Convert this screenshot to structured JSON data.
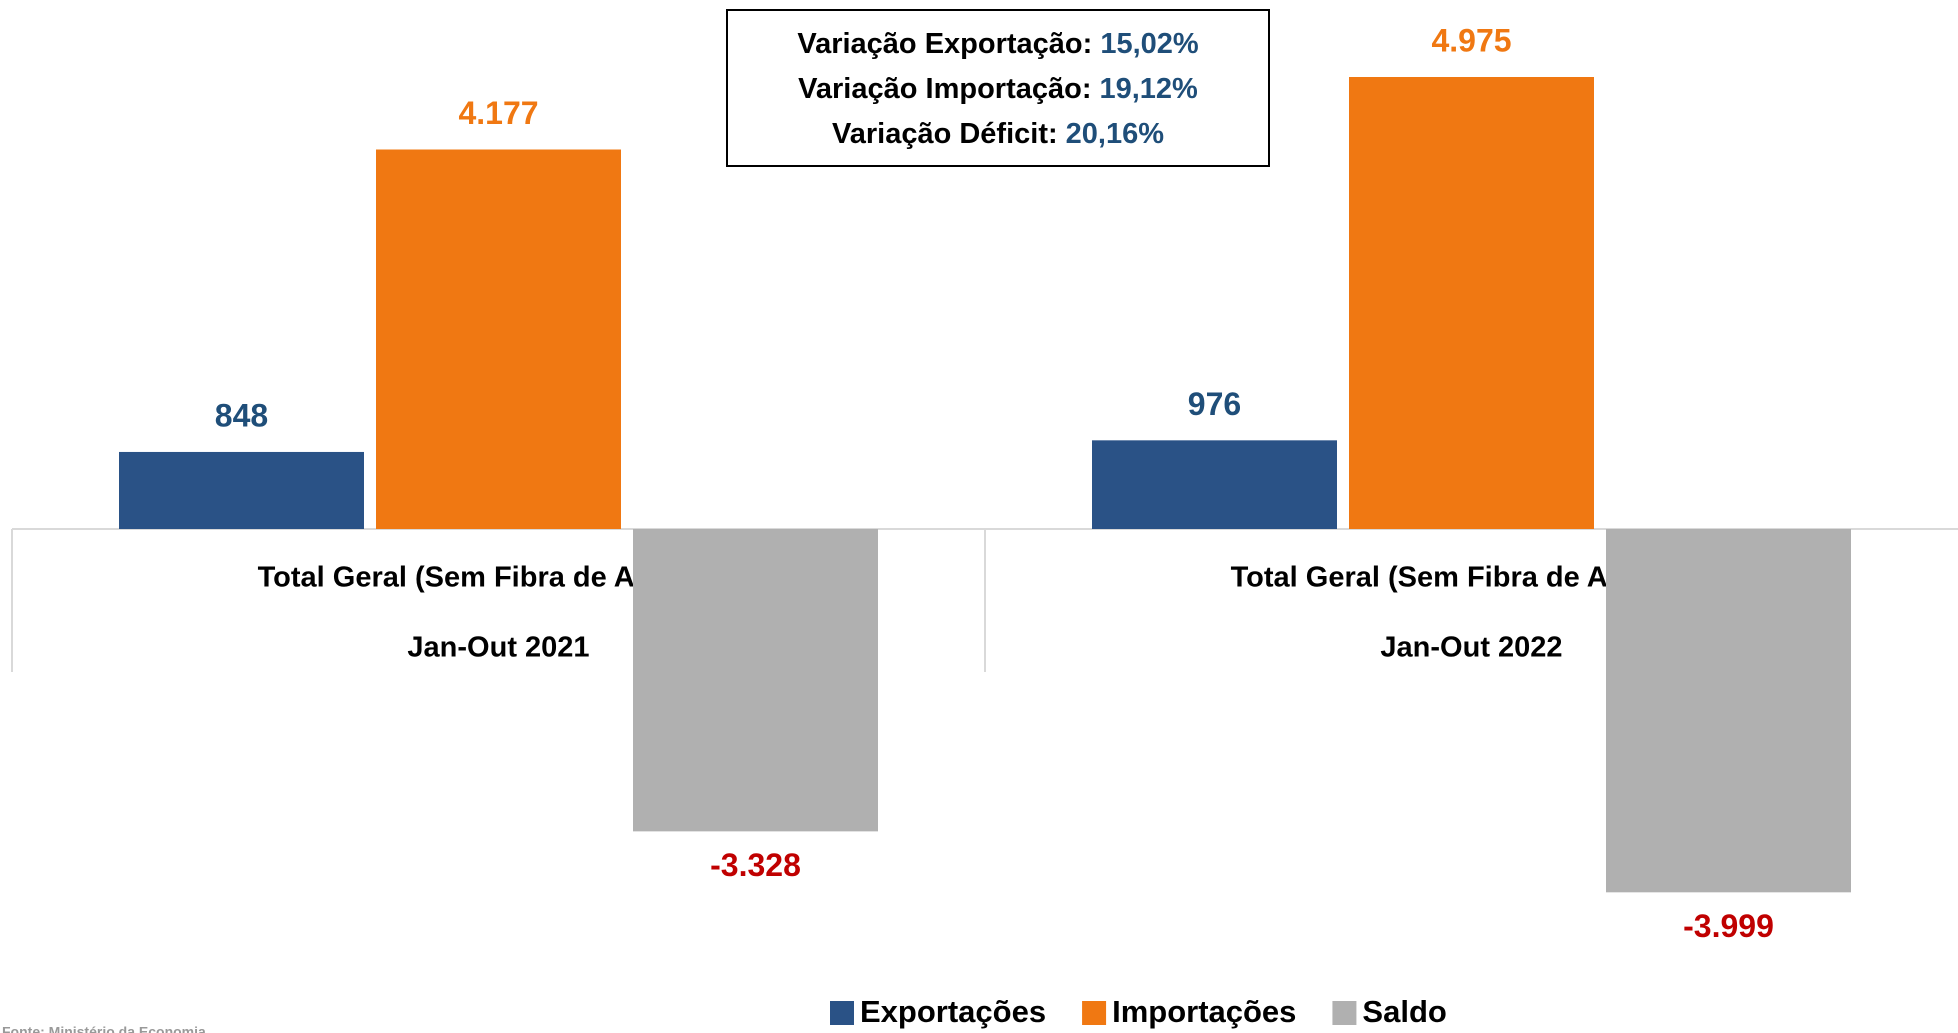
{
  "chart_data": {
    "type": "bar",
    "categories": [
      [
        "Total Geral (Sem Fibra de Algodão)",
        "Jan-Out 2021"
      ],
      [
        "Total Geral (Sem Fibra de Algodão)",
        "Jan-Out 2022"
      ]
    ],
    "series": [
      {
        "name": "Exportações",
        "color": "#2a5286",
        "label_color": "#1f4e79",
        "values": [
          848,
          976
        ],
        "value_labels": [
          "848",
          "976"
        ]
      },
      {
        "name": "Importações",
        "color": "#f07812",
        "label_color": "#f07812",
        "values": [
          4177,
          4975
        ],
        "value_labels": [
          "4.177",
          "4.975"
        ]
      },
      {
        "name": "Saldo",
        "color": "#b0b0b0",
        "label_color": "#c00000",
        "values": [
          -3328,
          -3999
        ],
        "value_labels": [
          "-3.328",
          "-3.999"
        ]
      }
    ],
    "annotations": [
      {
        "label": "Variação Exportação:",
        "value": "15,02%"
      },
      {
        "label": "Variação Importação:",
        "value": "19,12%"
      },
      {
        "label": "Variação Déficit:",
        "value": "20,16%"
      }
    ],
    "source": "Fonte: Ministério da Economia",
    "legend": "bottom"
  }
}
